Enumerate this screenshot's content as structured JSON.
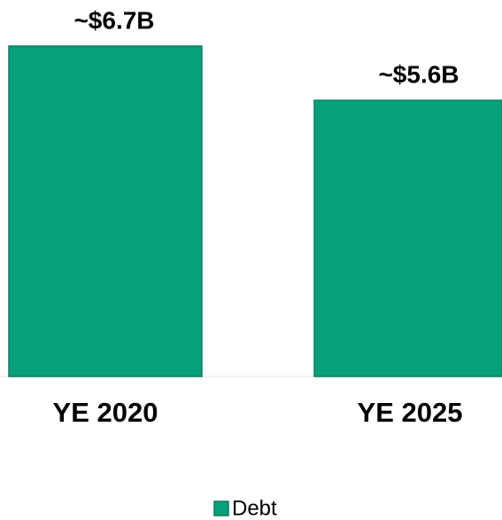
{
  "chart_data": {
    "type": "bar",
    "categories": [
      "YE 2020",
      "YE 2025"
    ],
    "values": [
      6.7,
      5.6
    ],
    "value_labels": [
      "~$6.7B",
      "~$5.6B"
    ],
    "color": "#06a07a",
    "ylim": [
      0,
      6.7
    ],
    "series_name": "Debt",
    "legend": "bottom"
  }
}
